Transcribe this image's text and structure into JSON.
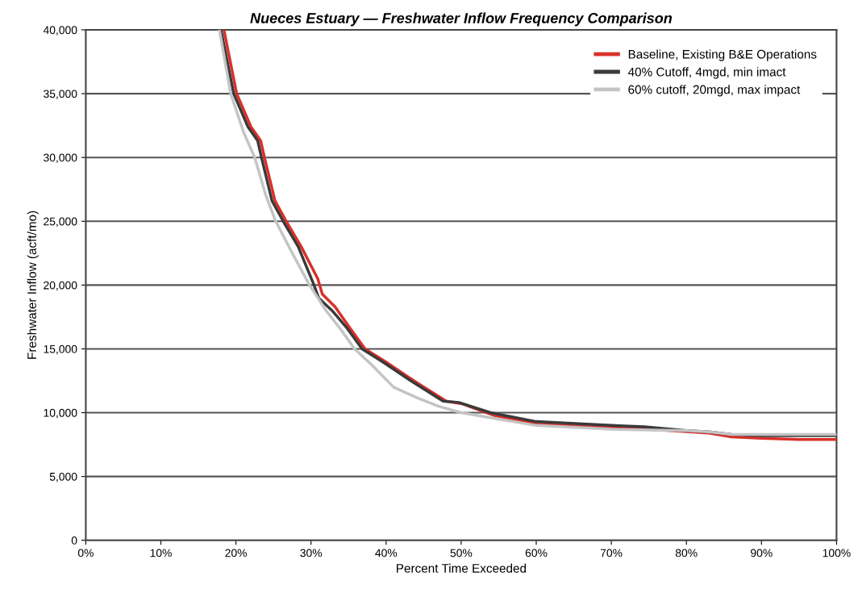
{
  "chart_data": {
    "type": "line",
    "title": "Nueces Estuary — Freshwater Inflow Frequency Comparison",
    "xlabel": "Percent Time Exceeded",
    "ylabel": "Freshwater Inflow (acft/mo)",
    "xlim": [
      0,
      100
    ],
    "ylim": [
      0,
      40000
    ],
    "xticks": [
      {
        "value": 0,
        "label": "0%"
      },
      {
        "value": 10,
        "label": "10%"
      },
      {
        "value": 20,
        "label": "20%"
      },
      {
        "value": 30,
        "label": "30%"
      },
      {
        "value": 40,
        "label": "40%"
      },
      {
        "value": 50,
        "label": "50%"
      },
      {
        "value": 60,
        "label": "60%"
      },
      {
        "value": 70,
        "label": "70%"
      },
      {
        "value": 80,
        "label": "80%"
      },
      {
        "value": 90,
        "label": "90%"
      },
      {
        "value": 100,
        "label": "100%"
      }
    ],
    "yticks": [
      {
        "value": 0,
        "label": "0"
      },
      {
        "value": 5000,
        "label": "5,000"
      },
      {
        "value": 10000,
        "label": "10,000"
      },
      {
        "value": 15000,
        "label": "15,000"
      },
      {
        "value": 20000,
        "label": "20,000"
      },
      {
        "value": 25000,
        "label": "25,000"
      },
      {
        "value": 30000,
        "label": "30,000"
      },
      {
        "value": 35000,
        "label": "35,000"
      },
      {
        "value": 40000,
        "label": "40,000"
      }
    ],
    "grid": "y",
    "legend": "top right",
    "marker": "none",
    "line_style": "solid",
    "series": [
      {
        "name": "Baseline, Existing B&E Operations",
        "color": "#d9302a",
        "x": [
          18.4,
          20.1,
          22.0,
          23.3,
          23.8,
          25.2,
          26.7,
          28.7,
          30.9,
          31.5,
          33.2,
          35.1,
          37.2,
          39.9,
          43.7,
          48.0,
          50.1,
          54.3,
          60.4,
          70.4,
          74.8,
          80.4,
          83,
          86,
          90,
          95,
          100
        ],
        "values": [
          40000,
          35000,
          32400,
          31300,
          30000,
          26600,
          25000,
          23000,
          20500,
          19300,
          18300,
          16700,
          15000,
          14000,
          12500,
          10900,
          10700,
          9800,
          9100,
          8800,
          8700,
          8500,
          8400,
          8100,
          8000,
          7900,
          7900
        ]
      },
      {
        "name": "40% Cutoff, 4mgd, min imact",
        "color": "#3a3a3a",
        "x": [
          18.0,
          19.7,
          21.6,
          22.9,
          23.4,
          24.8,
          26.3,
          28.3,
          30.4,
          31.0,
          32.8,
          34.7,
          36.8,
          39.5,
          43.3,
          47.6,
          49.7,
          53.9,
          60,
          70,
          74.4,
          80,
          83,
          86,
          90,
          95,
          100
        ],
        "values": [
          40000,
          35000,
          32400,
          31300,
          30000,
          26600,
          25000,
          23000,
          20000,
          19000,
          18000,
          16700,
          15000,
          14000,
          12500,
          10900,
          10800,
          10000,
          9300,
          9000,
          8900,
          8600,
          8500,
          8300,
          8200,
          8200,
          8200
        ]
      },
      {
        "name": "60% cutoff, 20mgd, max impact",
        "color": "#c4c4c4",
        "x": [
          17.8,
          19.3,
          21.0,
          22.5,
          24.0,
          25.3,
          27.5,
          29.8,
          32.0,
          34.0,
          35.8,
          38.0,
          41.0,
          44.0,
          47.0,
          50.0,
          55.0,
          60,
          70,
          80,
          83,
          86,
          90,
          95,
          100
        ],
        "values": [
          40000,
          35000,
          32000,
          30000,
          27000,
          25000,
          22500,
          20000,
          18000,
          16500,
          15000,
          13800,
          12000,
          11200,
          10500,
          10000,
          9500,
          9000,
          8700,
          8600,
          8500,
          8300,
          8300,
          8300,
          8300
        ]
      }
    ]
  }
}
